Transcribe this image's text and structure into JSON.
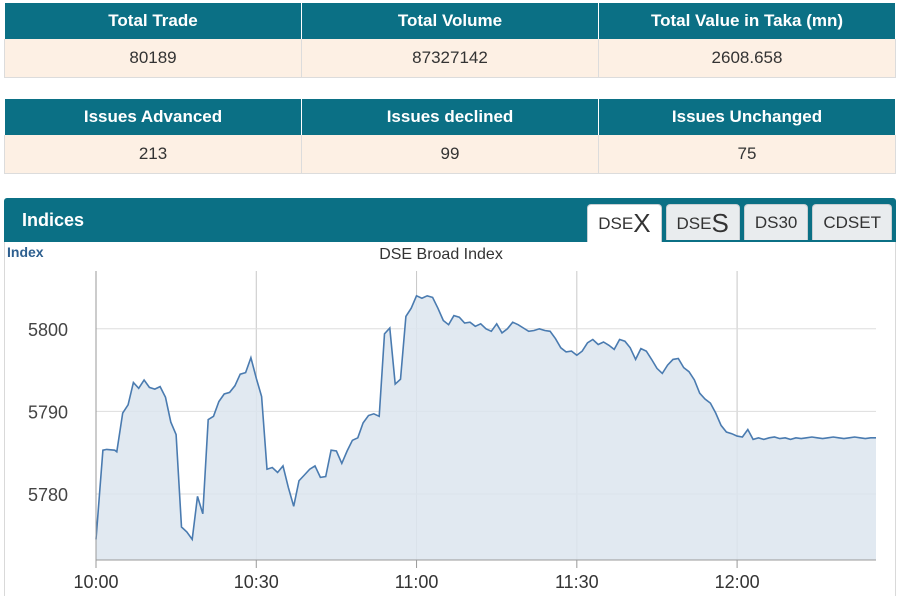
{
  "summary_top": {
    "headers": [
      "Total Trade",
      "Total Volume",
      "Total Value in Taka (mn)"
    ],
    "values": [
      "80189",
      "87327142",
      "2608.658"
    ]
  },
  "summary_issues": {
    "headers": [
      "Issues Advanced",
      "Issues declined",
      "Issues Unchanged"
    ],
    "values": [
      "213",
      "99",
      "75"
    ]
  },
  "indices": {
    "title": "Indices",
    "tabs": [
      {
        "prefix": "DSE",
        "big": "X"
      },
      {
        "prefix": "DSE",
        "big": "S"
      },
      {
        "prefix": "DS30",
        "big": ""
      },
      {
        "prefix": "CDSET",
        "big": ""
      }
    ],
    "active_tab": 0
  },
  "colors": {
    "header": "#0b7085",
    "cell_bg": "#fdf0e4",
    "line": "#4a7bb0",
    "area": "#dce5ef"
  },
  "chart_data": {
    "type": "area",
    "title": "DSE Broad Index",
    "ylabel": "Index",
    "x_ticks": [
      "10:00",
      "10:30",
      "11:00",
      "11:30",
      "12:00"
    ],
    "x_tick_minutes": [
      0,
      30,
      60,
      90,
      120
    ],
    "y_ticks": [
      5780,
      5790,
      5800
    ],
    "xlim": [
      0,
      146
    ],
    "ylim": [
      5772,
      5807
    ],
    "grid": true,
    "series": [
      {
        "x": [
          0,
          1.3,
          2,
          3.5,
          3.9,
          5,
          6,
          7,
          8,
          9,
          10,
          11,
          12,
          13,
          14,
          15,
          16,
          17,
          18,
          19,
          20,
          21,
          22,
          23,
          24,
          25,
          26,
          27,
          28,
          29,
          30,
          31,
          32,
          33,
          34,
          35,
          36,
          37,
          38,
          39,
          40,
          41,
          42,
          43,
          44,
          45,
          46,
          47,
          48,
          49,
          50,
          51,
          52,
          53,
          54,
          55,
          56,
          57,
          58,
          59,
          60,
          61,
          62,
          63,
          64,
          65,
          66,
          67,
          68,
          69,
          70,
          71,
          72,
          73,
          74,
          75,
          76,
          77,
          78,
          79,
          80,
          81,
          82,
          83,
          84,
          85,
          86,
          87,
          88,
          89,
          90,
          91,
          92,
          93,
          94,
          95,
          96,
          97,
          98,
          99,
          100,
          101,
          102,
          103,
          104,
          105,
          106,
          107,
          108,
          109,
          110,
          111,
          112,
          113,
          114,
          115,
          116,
          117,
          118,
          119,
          120,
          121,
          122,
          123,
          124,
          125,
          126,
          127,
          128,
          129,
          130,
          131,
          132,
          133,
          134,
          135,
          136,
          137,
          138,
          139,
          140,
          141,
          142,
          143,
          144,
          145,
          146
        ],
        "values": [
          5774.5,
          5785.3,
          5785.4,
          5785.3,
          5785.1,
          5789.8,
          5790.8,
          5793.5,
          5792.8,
          5793.8,
          5792.9,
          5792.7,
          5793.0,
          5791.7,
          5788.7,
          5787.2,
          5776.0,
          5775.4,
          5774.5,
          5779.7,
          5777.6,
          5789.0,
          5789.4,
          5791.2,
          5792.1,
          5792.3,
          5793.1,
          5794.5,
          5794.7,
          5796.5,
          5794.0,
          5791.8,
          5783.0,
          5783.2,
          5782.6,
          5783.4,
          5780.8,
          5778.5,
          5781.6,
          5782.3,
          5783.0,
          5783.4,
          5782.0,
          5782.1,
          5785.3,
          5785.2,
          5783.7,
          5785.2,
          5786.5,
          5786.8,
          5788.6,
          5789.5,
          5789.7,
          5789.4,
          5799.4,
          5800.1,
          5793.3,
          5793.9,
          5801.5,
          5802.5,
          5804.0,
          5803.7,
          5804.0,
          5803.8,
          5802.5,
          5801.0,
          5800.5,
          5801.6,
          5801.4,
          5800.7,
          5800.8,
          5800.3,
          5800.6,
          5800.0,
          5799.7,
          5800.6,
          5799.5,
          5800.0,
          5800.8,
          5800.5,
          5800.1,
          5799.7,
          5799.8,
          5800.0,
          5799.8,
          5799.7,
          5798.8,
          5797.7,
          5797.2,
          5797.3,
          5796.8,
          5797.3,
          5798.3,
          5798.7,
          5798.1,
          5798.4,
          5798.0,
          5797.5,
          5798.7,
          5798.5,
          5797.7,
          5796.3,
          5797.6,
          5797.3,
          5796.3,
          5795.2,
          5794.6,
          5795.6,
          5796.3,
          5796.4,
          5795.3,
          5794.8,
          5793.8,
          5792.2,
          5791.5,
          5791.0,
          5789.8,
          5788.3,
          5787.5,
          5787.3,
          5787.0,
          5786.9,
          5787.8,
          5786.6,
          5786.8,
          5786.6,
          5786.8,
          5786.9,
          5786.7,
          5786.8,
          5786.6,
          5786.8,
          5786.7,
          5786.8,
          5786.9,
          5786.8,
          5786.7,
          5786.8,
          5786.9,
          5786.8,
          5786.7,
          5786.8,
          5786.9,
          5786.8,
          5786.7,
          5786.8,
          5786.8
        ]
      }
    ]
  }
}
